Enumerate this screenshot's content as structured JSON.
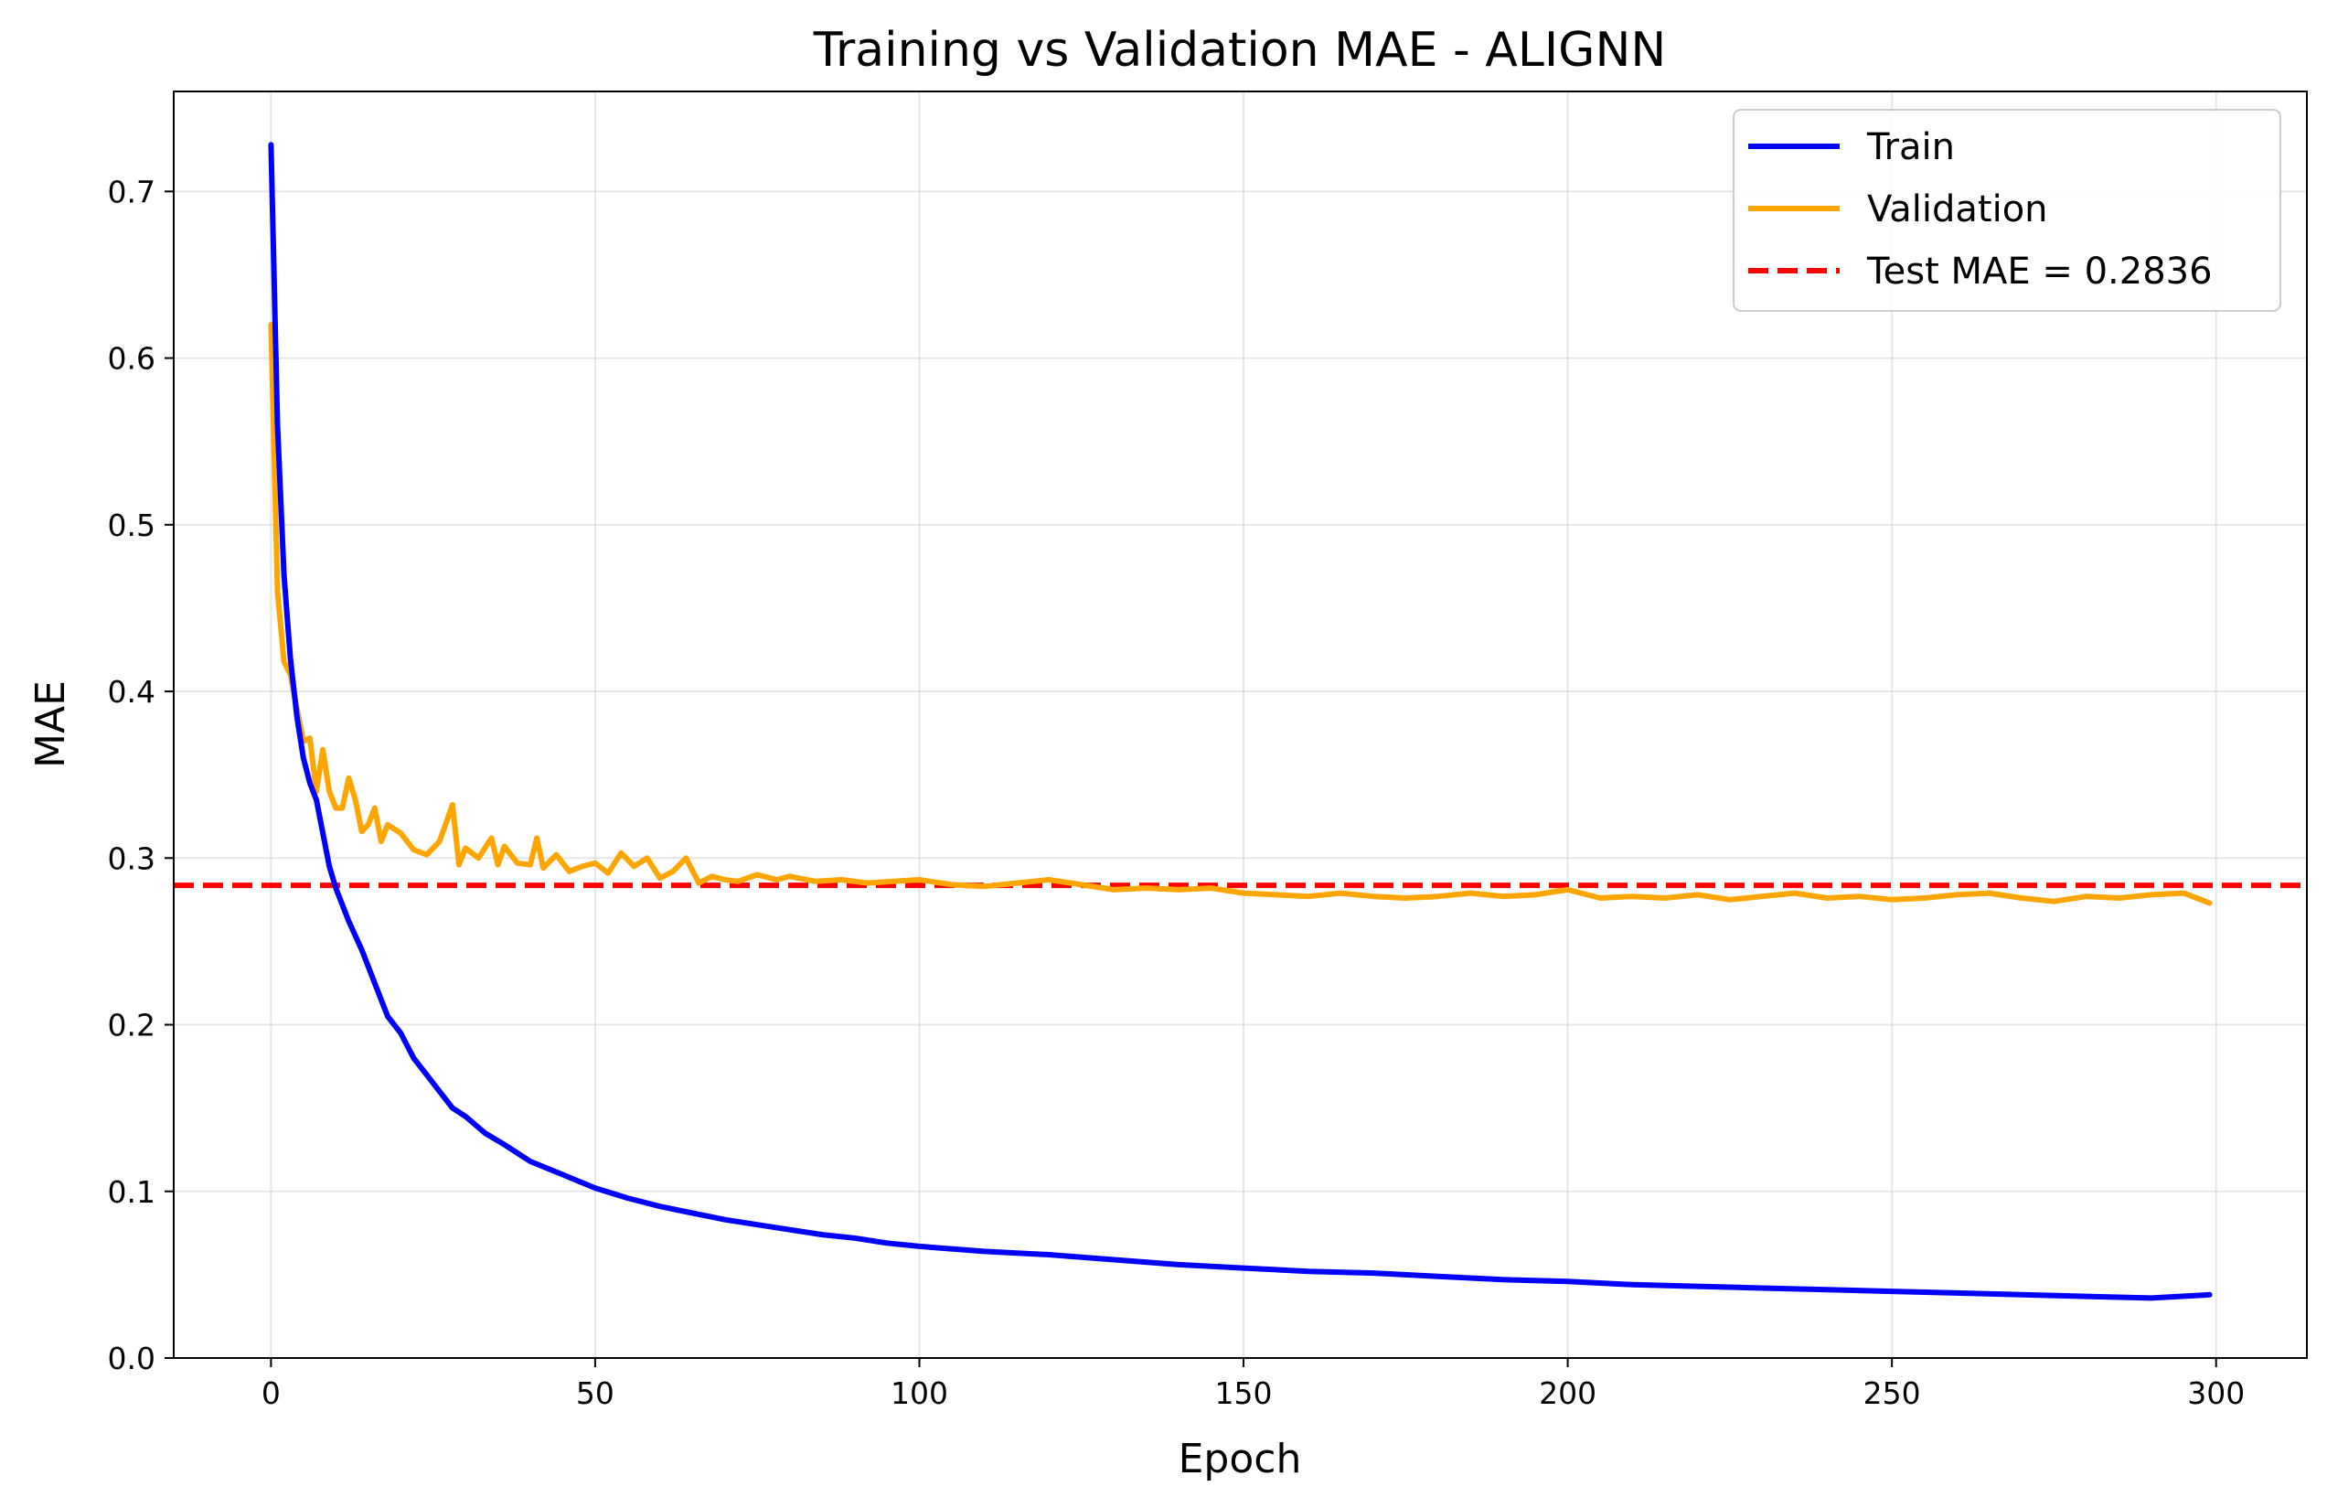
{
  "chart_data": {
    "type": "line",
    "title": "Training vs Validation MAE - ALIGNN",
    "xlabel": "Epoch",
    "ylabel": "MAE",
    "xlim": [
      -15,
      314
    ],
    "ylim": [
      0.0,
      0.76
    ],
    "xticks": [
      0,
      50,
      100,
      150,
      200,
      250,
      300
    ],
    "yticks": [
      0.0,
      0.1,
      0.2,
      0.3,
      0.4,
      0.5,
      0.6,
      0.7
    ],
    "xtick_labels": [
      "0",
      "50",
      "100",
      "150",
      "200",
      "250",
      "300"
    ],
    "ytick_labels": [
      "0.0",
      "0.1",
      "0.2",
      "0.3",
      "0.4",
      "0.5",
      "0.6",
      "0.7"
    ],
    "grid": true,
    "legend_position": "top-right",
    "series": [
      {
        "name": "Train",
        "color": "#0000ff",
        "style": "solid",
        "x": [
          0,
          1,
          2,
          3,
          4,
          5,
          6,
          7,
          8,
          9,
          10,
          12,
          14,
          16,
          18,
          20,
          22,
          24,
          26,
          28,
          30,
          33,
          36,
          40,
          45,
          50,
          55,
          60,
          65,
          70,
          75,
          80,
          85,
          90,
          95,
          100,
          110,
          120,
          130,
          140,
          150,
          160,
          170,
          180,
          190,
          200,
          210,
          220,
          230,
          240,
          250,
          260,
          270,
          280,
          290,
          299
        ],
        "y": [
          0.728,
          0.56,
          0.47,
          0.42,
          0.385,
          0.36,
          0.345,
          0.335,
          0.315,
          0.295,
          0.282,
          0.262,
          0.245,
          0.225,
          0.205,
          0.195,
          0.18,
          0.17,
          0.16,
          0.15,
          0.145,
          0.135,
          0.128,
          0.118,
          0.11,
          0.102,
          0.096,
          0.091,
          0.087,
          0.083,
          0.08,
          0.077,
          0.074,
          0.072,
          0.069,
          0.067,
          0.064,
          0.062,
          0.059,
          0.056,
          0.054,
          0.052,
          0.051,
          0.049,
          0.047,
          0.046,
          0.044,
          0.043,
          0.042,
          0.041,
          0.04,
          0.039,
          0.038,
          0.037,
          0.036,
          0.038
        ]
      },
      {
        "name": "Validation",
        "color": "#ffa500",
        "style": "solid",
        "x": [
          0,
          1,
          2,
          3,
          4,
          5,
          6,
          7,
          8,
          9,
          10,
          11,
          12,
          13,
          14,
          15,
          16,
          17,
          18,
          20,
          22,
          24,
          26,
          28,
          29,
          30,
          32,
          34,
          35,
          36,
          38,
          40,
          41,
          42,
          44,
          46,
          48,
          50,
          52,
          54,
          56,
          58,
          60,
          62,
          64,
          66,
          68,
          70,
          72,
          75,
          78,
          80,
          84,
          88,
          92,
          96,
          100,
          105,
          110,
          115,
          120,
          125,
          130,
          135,
          140,
          145,
          150,
          155,
          160,
          165,
          170,
          175,
          180,
          185,
          190,
          195,
          200,
          205,
          210,
          215,
          220,
          225,
          230,
          235,
          240,
          245,
          250,
          255,
          260,
          265,
          270,
          275,
          280,
          285,
          290,
          295,
          299
        ],
        "y": [
          0.62,
          0.46,
          0.418,
          0.41,
          0.39,
          0.37,
          0.372,
          0.34,
          0.365,
          0.34,
          0.33,
          0.33,
          0.348,
          0.335,
          0.316,
          0.32,
          0.33,
          0.31,
          0.32,
          0.315,
          0.305,
          0.302,
          0.31,
          0.332,
          0.296,
          0.306,
          0.3,
          0.312,
          0.296,
          0.307,
          0.297,
          0.296,
          0.312,
          0.294,
          0.302,
          0.292,
          0.295,
          0.297,
          0.291,
          0.303,
          0.295,
          0.3,
          0.288,
          0.292,
          0.3,
          0.285,
          0.289,
          0.287,
          0.286,
          0.29,
          0.287,
          0.289,
          0.286,
          0.287,
          0.285,
          0.286,
          0.287,
          0.284,
          0.283,
          0.285,
          0.287,
          0.284,
          0.281,
          0.282,
          0.281,
          0.282,
          0.279,
          0.278,
          0.277,
          0.279,
          0.277,
          0.276,
          0.277,
          0.279,
          0.277,
          0.278,
          0.281,
          0.276,
          0.277,
          0.276,
          0.278,
          0.275,
          0.277,
          0.279,
          0.276,
          0.277,
          0.275,
          0.276,
          0.278,
          0.279,
          0.276,
          0.274,
          0.277,
          0.276,
          0.278,
          0.279,
          0.273
        ]
      }
    ],
    "reference_lines": [
      {
        "name": "Test MAE = 0.2836",
        "value": 0.2836,
        "orientation": "horizontal",
        "color": "#ff0000",
        "style": "dashed"
      }
    ]
  }
}
